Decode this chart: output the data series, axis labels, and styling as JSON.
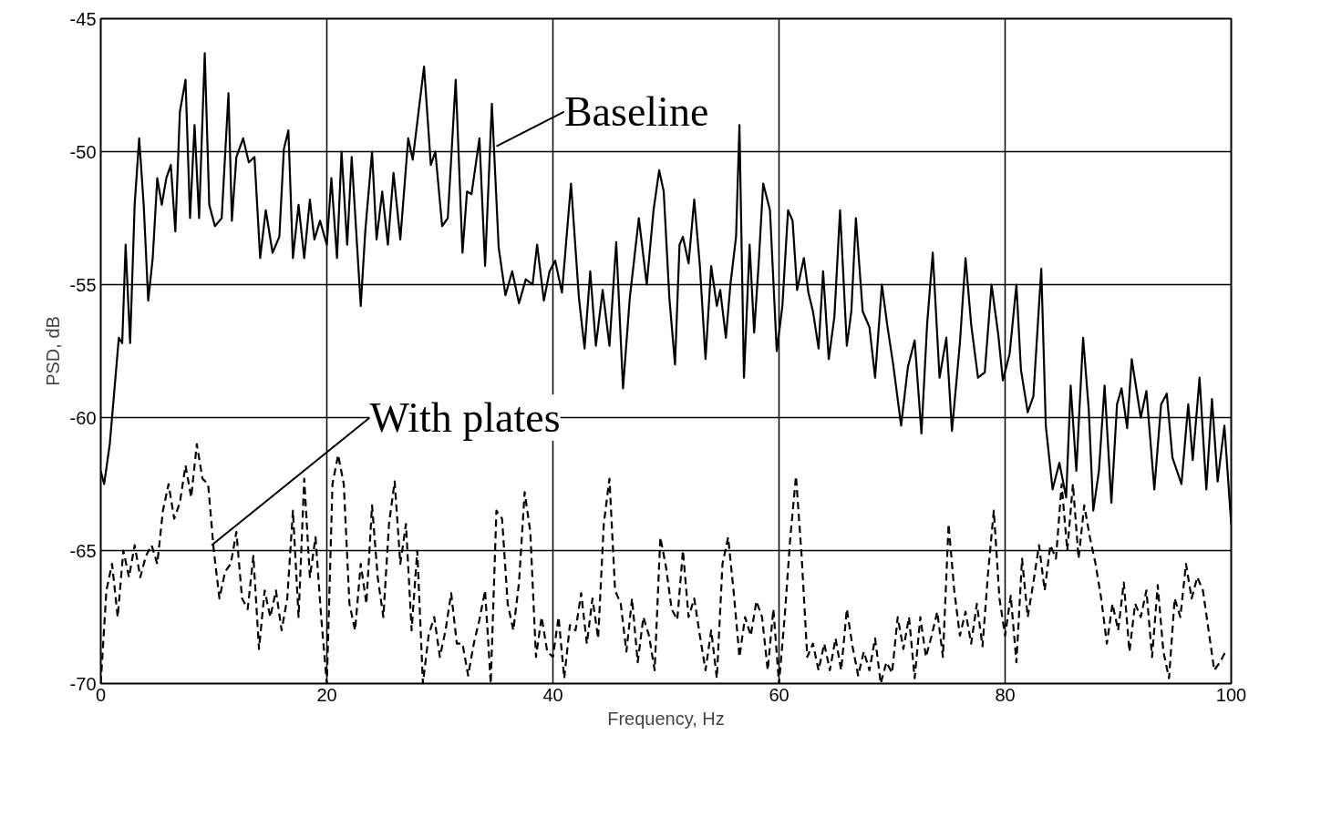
{
  "chart_data": {
    "type": "line",
    "xlabel": "Frequency, Hz",
    "ylabel": "PSD, dB",
    "xlim": [
      0,
      100
    ],
    "ylim": [
      -70,
      -45
    ],
    "xticks": [
      0,
      20,
      40,
      60,
      80,
      100
    ],
    "yticks": [
      -70,
      -65,
      -60,
      -55,
      -50,
      -45
    ],
    "grid": true,
    "marker": "none",
    "annotations": [
      {
        "text": "Baseline",
        "x": 35,
        "y": -49.8
      },
      {
        "text": "With plates",
        "x": 9.8,
        "y": -64.8
      }
    ],
    "series": [
      {
        "color": "#000000",
        "line_style": "solid",
        "x": [
          0,
          0.3,
          0.8,
          1.2,
          1.6,
          1.9,
          2.2,
          2.6,
          3,
          3.4,
          3.8,
          4.2,
          4.6,
          5,
          5.4,
          5.8,
          6.2,
          6.6,
          7,
          7.5,
          7.9,
          8.3,
          8.7,
          9.2,
          9.6,
          10.1,
          10.7,
          11.3,
          11.6,
          12,
          12.6,
          13.1,
          13.6,
          14.1,
          14.6,
          15.2,
          15.8,
          16.2,
          16.6,
          17,
          17.5,
          18,
          18.5,
          18.9,
          19.4,
          20,
          20.4,
          20.9,
          21.3,
          21.8,
          22.2,
          23,
          23.4,
          24,
          24.4,
          24.9,
          25.4,
          25.9,
          26.5,
          27.2,
          27.6,
          28.2,
          28.6,
          29.2,
          29.6,
          30.2,
          30.7,
          31.4,
          32,
          32.4,
          32.8,
          33.5,
          34,
          34.6,
          35.2,
          35.8,
          36.4,
          37,
          37.6,
          38.2,
          38.6,
          39.2,
          39.7,
          40.2,
          40.8,
          41.6,
          42.3,
          42.8,
          43.3,
          43.8,
          44.4,
          45,
          45.6,
          46.2,
          46.8,
          47.2,
          47.6,
          48.3,
          48.9,
          49.4,
          49.8,
          50.3,
          50.8,
          51.2,
          51.5,
          52,
          52.5,
          53,
          53.5,
          54,
          54.5,
          54.8,
          55.3,
          55.7,
          56.2,
          56.5,
          56.9,
          57.4,
          57.8,
          58.2,
          58.6,
          59.2,
          59.8,
          60.3,
          60.8,
          61.2,
          61.6,
          62.2,
          62.6,
          63,
          63.5,
          63.9,
          64.4,
          64.9,
          65.4,
          66,
          66.4,
          66.8,
          67.4,
          68,
          68.5,
          69.1,
          69.6,
          70.1,
          70.8,
          71.4,
          72,
          72.6,
          73.1,
          73.6,
          74.2,
          74.8,
          75.3,
          76,
          76.5,
          77,
          77.6,
          78.2,
          78.8,
          79.4,
          79.8,
          80.4,
          81,
          81.4,
          82,
          82.5,
          83.2,
          83.6,
          84.2,
          84.8,
          85.4,
          85.8,
          86.3,
          86.9,
          87.4,
          87.8,
          88.3,
          88.8,
          89.4,
          89.9,
          90.3,
          90.8,
          91.2,
          92,
          92.5,
          93.2,
          93.8,
          94.3,
          94.8,
          95.6,
          96.2,
          96.6,
          97.2,
          97.8,
          98.3,
          98.8,
          99.4,
          100
        ],
        "values": [
          -62,
          -62.5,
          -61,
          -59,
          -57,
          -57.2,
          -53.5,
          -57.2,
          -52,
          -49.5,
          -52,
          -55.6,
          -54,
          -51,
          -52,
          -51,
          -50.5,
          -53,
          -48.5,
          -47.3,
          -52.5,
          -49,
          -52.5,
          -46.3,
          -52,
          -52.8,
          -52.5,
          -47.8,
          -52.6,
          -50.2,
          -49.5,
          -50.4,
          -50.2,
          -54,
          -52.2,
          -53.8,
          -53.2,
          -49.9,
          -49.2,
          -54,
          -52,
          -54,
          -51.8,
          -53.3,
          -52.6,
          -53.5,
          -51,
          -54,
          -50,
          -53.5,
          -50.2,
          -55.8,
          -53,
          -50,
          -53.3,
          -51.5,
          -53.5,
          -50.8,
          -53.3,
          -49.5,
          -50.3,
          -48.2,
          -46.8,
          -50.5,
          -50,
          -52.8,
          -52.5,
          -47.3,
          -53.8,
          -51.5,
          -51.6,
          -49.5,
          -54.3,
          -48.2,
          -53.6,
          -55.4,
          -54.5,
          -55.7,
          -54.8,
          -55,
          -53.5,
          -55.6,
          -54.5,
          -54.1,
          -55.3,
          -51.2,
          -55.5,
          -57.4,
          -54.5,
          -57.3,
          -55.2,
          -57.3,
          -53.4,
          -58.9,
          -55.5,
          -54,
          -52.5,
          -55,
          -52.2,
          -50.7,
          -51.5,
          -55.5,
          -58,
          -53.5,
          -53.2,
          -54.2,
          -51.8,
          -54.3,
          -57.8,
          -54.3,
          -55.8,
          -55.2,
          -57,
          -55,
          -53.2,
          -49,
          -58.5,
          -53.5,
          -56.8,
          -54.2,
          -51.2,
          -52.2,
          -57.5,
          -55.8,
          -52.2,
          -52.6,
          -55.2,
          -54,
          -55.3,
          -56,
          -57.4,
          -54.5,
          -57.8,
          -56.2,
          -52.2,
          -57.3,
          -56,
          -52.5,
          -56,
          -56.6,
          -58.5,
          -55,
          -56.6,
          -58,
          -60.3,
          -58.1,
          -57.1,
          -60.6,
          -56.5,
          -53.8,
          -58.5,
          -57,
          -60.5,
          -57.2,
          -54,
          -56.5,
          -58.5,
          -58.3,
          -55,
          -56.9,
          -58.6,
          -57.6,
          -55,
          -58.2,
          -59.8,
          -59.2,
          -54.4,
          -60.3,
          -62.7,
          -61.7,
          -63,
          -58.8,
          -62,
          -57,
          -59.7,
          -63.5,
          -62,
          -58.8,
          -63.2,
          -59.5,
          -58.9,
          -60.4,
          -57.8,
          -60,
          -59,
          -62.7,
          -59.5,
          -59.1,
          -61.5,
          -62.5,
          -59.5,
          -61.6,
          -58.5,
          -62.7,
          -59.3,
          -62.4,
          -60.3,
          -64
        ]
      },
      {
        "color": "#000000",
        "line_style": "dashed",
        "x": [
          0,
          0.5,
          1,
          1.5,
          2,
          2.5,
          3,
          3.5,
          4,
          4.5,
          5,
          5.5,
          6,
          6.5,
          7,
          7.5,
          8,
          8.5,
          9,
          9.5,
          10,
          10.5,
          11,
          11.5,
          12,
          12.5,
          13,
          13.5,
          14,
          14.5,
          15,
          15.5,
          16,
          16.5,
          17,
          17.5,
          18,
          18.5,
          19,
          19.5,
          20,
          20.5,
          21,
          21.5,
          22,
          22.5,
          23,
          23.5,
          24,
          24.5,
          25,
          25.5,
          26,
          26.5,
          27,
          27.5,
          28,
          28.5,
          29,
          29.5,
          30,
          30.5,
          31,
          31.5,
          32,
          32.5,
          33,
          33.5,
          34,
          34.5,
          35,
          35.5,
          36,
          36.5,
          37,
          37.5,
          38,
          38.5,
          39,
          39.5,
          40,
          40.5,
          41,
          41.5,
          42,
          42.5,
          43,
          43.5,
          44,
          44.5,
          45,
          45.5,
          46,
          46.5,
          47,
          47.5,
          48,
          48.5,
          49,
          49.5,
          50,
          50.5,
          51,
          51.5,
          52,
          52.5,
          53,
          53.5,
          54,
          54.5,
          55,
          55.5,
          56,
          56.5,
          57,
          57.5,
          58,
          58.5,
          59,
          59.5,
          60,
          60.5,
          61,
          61.5,
          62,
          62.5,
          63,
          63.5,
          64,
          64.5,
          65,
          65.5,
          66,
          66.5,
          67,
          67.5,
          68,
          68.5,
          69,
          69.5,
          70,
          70.5,
          71,
          71.5,
          72,
          72.5,
          73,
          73.5,
          74,
          74.5,
          75,
          75.5,
          76,
          76.5,
          77,
          77.5,
          78,
          78.5,
          79,
          79.5,
          80,
          80.5,
          81,
          81.5,
          82,
          82.5,
          83,
          83.5,
          84,
          84.5,
          85,
          85.5,
          86,
          86.5,
          87,
          87.5,
          88,
          88.5,
          89,
          89.5,
          90,
          90.5,
          91,
          91.5,
          92,
          92.5,
          93,
          93.5,
          94,
          94.5,
          95,
          95.5,
          96,
          96.5,
          97,
          97.5,
          98,
          98.5,
          99,
          99.5
        ],
        "values": [
          -70,
          -66.5,
          -65.5,
          -67.5,
          -65,
          -66,
          -64.8,
          -66,
          -65.2,
          -64.8,
          -65.5,
          -63.5,
          -62.5,
          -63.8,
          -63.2,
          -61.8,
          -63,
          -61,
          -62.3,
          -62.5,
          -65,
          -66.8,
          -65.8,
          -65.5,
          -64.3,
          -66.8,
          -67.2,
          -65.2,
          -68.7,
          -66.5,
          -67.5,
          -66.5,
          -68,
          -66.8,
          -63.5,
          -67.5,
          -62.3,
          -66,
          -64.5,
          -67.5,
          -70,
          -62.5,
          -61.4,
          -62.5,
          -67,
          -68,
          -65.5,
          -67,
          -63.3,
          -66,
          -67.5,
          -64,
          -62.4,
          -65.5,
          -64,
          -68,
          -65,
          -70,
          -68.2,
          -67.5,
          -69,
          -68,
          -66.6,
          -68.5,
          -68.5,
          -69.7,
          -68.5,
          -67.6,
          -66.5,
          -70,
          -63.5,
          -63.8,
          -67,
          -68,
          -66.2,
          -62.8,
          -64.3,
          -69,
          -67.5,
          -68.8,
          -69,
          -67.5,
          -69.8,
          -67.8,
          -68,
          -66.6,
          -68.5,
          -66.8,
          -68.3,
          -64,
          -62.3,
          -66.5,
          -67,
          -68.8,
          -66.8,
          -69.2,
          -67.5,
          -68.2,
          -69.5,
          -64.5,
          -65.6,
          -67.2,
          -67.6,
          -65,
          -67.5,
          -66.8,
          -68.2,
          -69.5,
          -68,
          -69.8,
          -65.5,
          -64.5,
          -66.6,
          -69,
          -67.5,
          -68.2,
          -66.9,
          -67.5,
          -69.5,
          -67.2,
          -70,
          -67.5,
          -64.5,
          -62.2,
          -65.2,
          -69,
          -68.5,
          -69.5,
          -68.5,
          -69.5,
          -68.3,
          -69.5,
          -67.2,
          -68.6,
          -69.7,
          -68.8,
          -69.5,
          -68.3,
          -70,
          -69.2,
          -69.6,
          -67.5,
          -68.7,
          -67.5,
          -69.8,
          -67.5,
          -69,
          -68.2,
          -67.3,
          -69,
          -64,
          -66.5,
          -68.2,
          -67.3,
          -68.5,
          -67,
          -68.6,
          -65.8,
          -63.5,
          -66.8,
          -68.2,
          -66.7,
          -69.2,
          -65.3,
          -67.5,
          -66.2,
          -64.8,
          -66.5,
          -64.8,
          -65.3,
          -62.5,
          -65,
          -62.5,
          -65.3,
          -63.3,
          -64.5,
          -65.5,
          -66.8,
          -68.5,
          -67,
          -68,
          -66.2,
          -68.8,
          -67,
          -67.5,
          -66.5,
          -69,
          -66.3,
          -68.8,
          -69.8,
          -66.8,
          -67.5,
          -65.5,
          -66.8,
          -66,
          -66.5,
          -68,
          -69.5,
          -69.2,
          -68.8
        ]
      }
    ]
  }
}
